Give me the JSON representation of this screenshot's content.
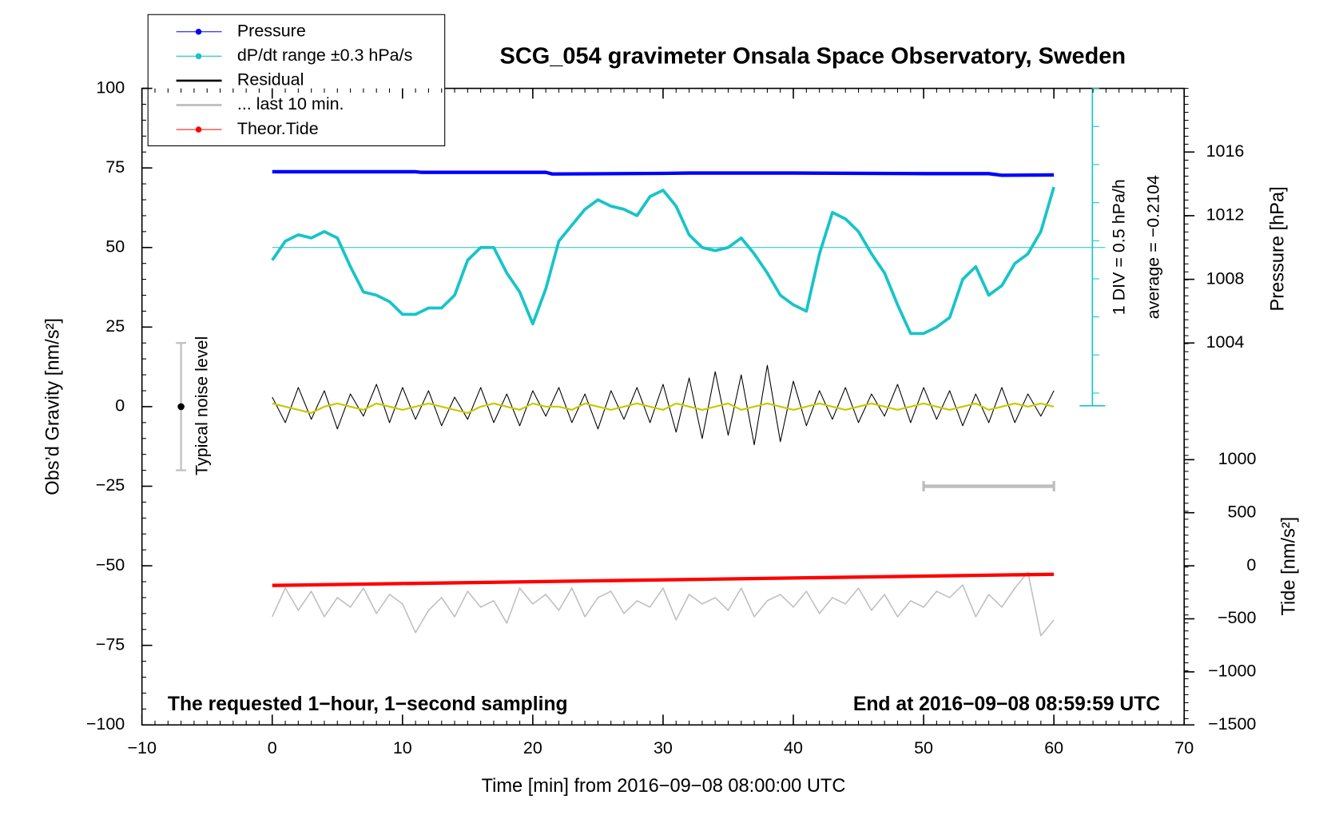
{
  "chart_data": {
    "type": "line",
    "title": "SCG_054 gravimeter Onsala Space Observatory, Sweden",
    "xlabel": "Time [min] from 2016−09−08 08:00:00 UTC",
    "ylabel": "Obs’d Gravity [nm/s²]",
    "y2label": "Pressure [hPa]",
    "y3label": "Tide [nm/s²]",
    "xlim": [
      -10,
      70
    ],
    "xticks": [
      {
        "value": -10,
        "label": "−10"
      },
      0,
      10,
      20,
      30,
      40,
      50,
      60,
      70
    ],
    "ylim": [
      -100,
      100
    ],
    "yticks": [
      {
        "value": -100,
        "label": "−100"
      },
      {
        "value": -75,
        "label": "−75"
      },
      {
        "value": -50,
        "label": "−50"
      },
      {
        "value": -25,
        "label": "−25"
      },
      0,
      25,
      50,
      75,
      100
    ],
    "y2lim": [
      1000,
      1020
    ],
    "y2ticks": [
      1004,
      1008,
      1012,
      1016
    ],
    "y3lim": [
      -1500,
      1500
    ],
    "y3ticks": [
      {
        "value": -1500,
        "label": "−1500"
      },
      {
        "value": -1000,
        "label": "−1000"
      },
      {
        "value": -500,
        "label": "−500"
      },
      0,
      500,
      1000
    ],
    "x": [
      0,
      1,
      2,
      3,
      4,
      5,
      6,
      7,
      8,
      9,
      10,
      11,
      12,
      13,
      14,
      15,
      16,
      17,
      18,
      19,
      20,
      21,
      22,
      23,
      24,
      25,
      26,
      27,
      28,
      29,
      30,
      31,
      32,
      33,
      34,
      35,
      36,
      37,
      38,
      39,
      40,
      41,
      42,
      43,
      44,
      45,
      46,
      47,
      48,
      49,
      50,
      51,
      52,
      53,
      54,
      55,
      56,
      57,
      58,
      59,
      60
    ],
    "series": [
      {
        "name": "Pressure",
        "color": "#0000ff",
        "axis": "y2",
        "marker": true,
        "width": 4,
        "x": [
          0,
          11,
          11.5,
          21,
          21.5,
          30,
          32,
          40,
          50,
          55,
          56,
          60
        ],
        "values": [
          1014.76,
          1014.76,
          1014.72,
          1014.72,
          1014.62,
          1014.66,
          1014.68,
          1014.68,
          1014.64,
          1014.64,
          1014.54,
          1014.56
        ]
      },
      {
        "name": "dP/dt range ±0.3 hPa/s",
        "color": "#18c4c8",
        "marker": true,
        "width": 3.5,
        "values": [
          46,
          52,
          54,
          53,
          55,
          53,
          44,
          36,
          35,
          33,
          29,
          29,
          31,
          31,
          35,
          46,
          50,
          50,
          42,
          36,
          26,
          37,
          52,
          57,
          62,
          65,
          63,
          62,
          60,
          66,
          68,
          63,
          54,
          50,
          49,
          50,
          53,
          48,
          42,
          35,
          32,
          30,
          48,
          61,
          59,
          55,
          48,
          42,
          32,
          23,
          23,
          25,
          28,
          40,
          44,
          35,
          38,
          45,
          48,
          55,
          69
        ]
      },
      {
        "name": "Residual",
        "color": "#000000",
        "width": 1,
        "values": [
          3,
          -5,
          6,
          -4,
          5,
          -7,
          4,
          -3,
          7,
          -5,
          6,
          -4,
          5,
          -6,
          3,
          -4,
          6,
          -5,
          4,
          -6,
          5,
          -3,
          6,
          -5,
          4,
          -7,
          5,
          -4,
          6,
          -5,
          7,
          -8,
          9,
          -10,
          11,
          -9,
          10,
          -12,
          13,
          -11,
          8,
          -6,
          5,
          -4,
          6,
          -5,
          4,
          -3,
          7,
          -5,
          6,
          -4,
          5,
          -6,
          4,
          -5,
          6,
          -5,
          4,
          -3,
          5
        ]
      },
      {
        "name": "... last 10 min.",
        "color": "#bdbdbd",
        "style": "range",
        "width": 4,
        "x": [
          50,
          60
        ],
        "values": [
          -25,
          -25
        ]
      },
      {
        "name": "Theor.Tide",
        "color": "#ff0000",
        "axis": "y3",
        "marker": true,
        "width": 4,
        "x": [
          0,
          60
        ],
        "values": [
          -185,
          -80
        ]
      },
      {
        "color": "#c8c800",
        "width": 2,
        "values": [
          1,
          0,
          -1,
          -2,
          0,
          1,
          0,
          -1,
          1,
          0,
          -1,
          0,
          1,
          0,
          -1,
          -2,
          0,
          1,
          0,
          -1,
          1,
          0,
          0,
          -1,
          1,
          0,
          -1,
          0,
          1,
          0,
          -1,
          1,
          0,
          -1,
          0,
          1,
          -1,
          0,
          1,
          0,
          -1,
          0,
          1,
          0,
          -1,
          0,
          1,
          0,
          -1,
          0,
          1,
          0,
          -1,
          0,
          1,
          -1,
          0,
          1,
          0,
          1,
          0
        ]
      },
      {
        "color": "#c0c0c0",
        "width": 1.5,
        "values": [
          -66,
          -57,
          -64,
          -58,
          -66,
          -60,
          -63,
          -57,
          -65,
          -59,
          -62,
          -71,
          -64,
          -60,
          -66,
          -58,
          -63,
          -61,
          -68,
          -57,
          -62,
          -59,
          -64,
          -57,
          -66,
          -60,
          -58,
          -65,
          -61,
          -63,
          -57,
          -67,
          -59,
          -62,
          -60,
          -64,
          -57,
          -66,
          -61,
          -59,
          -63,
          -58,
          -65,
          -60,
          -62,
          -57,
          -64,
          -59,
          -66,
          -61,
          -63,
          -58,
          -60,
          -56,
          -66,
          -59,
          -63,
          -57,
          -52,
          -72,
          -67
        ]
      }
    ],
    "average_line": 50,
    "noise_bar": {
      "label": "Typical noise level",
      "x": -7,
      "y": 0,
      "error": 20
    },
    "annotations": [
      "1 DIV = 0.5 hPa/h",
      "average = −0.2104",
      "The requested 1−hour, 1−second sampling",
      "End at 2016−09−08 08:59:59 UTC"
    ]
  }
}
